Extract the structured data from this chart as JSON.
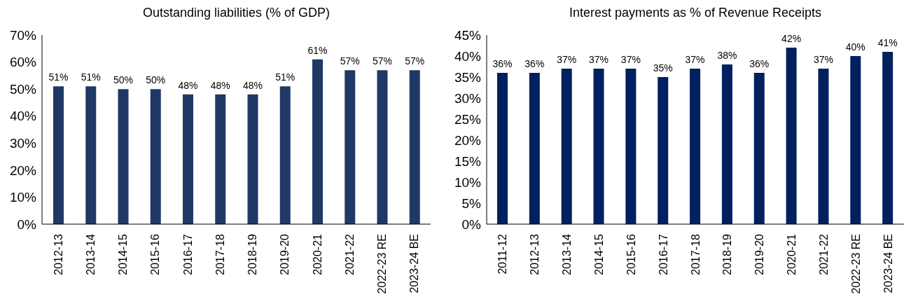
{
  "chart_data": [
    {
      "type": "bar",
      "title": "Outstanding liabilities (% of GDP)",
      "categories": [
        "2012-13",
        "2013-14",
        "2014-15",
        "2015-16",
        "2016-17",
        "2017-18",
        "2018-19",
        "2019-20",
        "2020-21",
        "2021-22",
        "2022-23 RE",
        "2023-24 BE"
      ],
      "values": [
        51,
        51,
        50,
        50,
        48,
        48,
        48,
        51,
        61,
        57,
        57,
        57
      ],
      "value_labels": [
        "51%",
        "51%",
        "50%",
        "50%",
        "48%",
        "48%",
        "48%",
        "51%",
        "61%",
        "57%",
        "57%",
        "57%"
      ],
      "color": "#203864",
      "ylim": [
        0,
        70
      ],
      "yticks": [
        {
          "value": 0,
          "label": "0%"
        },
        {
          "value": 10,
          "label": "10%"
        },
        {
          "value": 20,
          "label": "20%"
        },
        {
          "value": 30,
          "label": "30%"
        },
        {
          "value": 40,
          "label": "40%"
        },
        {
          "value": 50,
          "label": "50%"
        },
        {
          "value": 60,
          "label": "60%"
        },
        {
          "value": 70,
          "label": "70%"
        }
      ],
      "grid": false,
      "legend": false
    },
    {
      "type": "bar",
      "title": "Interest payments as % of Revenue Receipts",
      "categories": [
        "2011-12",
        "2012-13",
        "2013-14",
        "2014-15",
        "2015-16",
        "2016-17",
        "2017-18",
        "2018-19",
        "2019-20",
        "2020-21",
        "2021-22",
        "2022-23 RE",
        "2023-24 BE"
      ],
      "values": [
        36,
        36,
        37,
        37,
        37,
        35,
        37,
        38,
        36,
        42,
        37,
        40,
        41
      ],
      "value_labels": [
        "36%",
        "36%",
        "37%",
        "37%",
        "37%",
        "35%",
        "37%",
        "38%",
        "36%",
        "42%",
        "37%",
        "40%",
        "41%"
      ],
      "color": "#002060",
      "ylim": [
        0,
        45
      ],
      "yticks": [
        {
          "value": 0,
          "label": "0%"
        },
        {
          "value": 5,
          "label": "5%"
        },
        {
          "value": 10,
          "label": "10%"
        },
        {
          "value": 15,
          "label": "15%"
        },
        {
          "value": 20,
          "label": "20%"
        },
        {
          "value": 25,
          "label": "25%"
        },
        {
          "value": 30,
          "label": "30%"
        },
        {
          "value": 35,
          "label": "35%"
        },
        {
          "value": 40,
          "label": "40%"
        },
        {
          "value": 45,
          "label": "45%"
        }
      ],
      "grid": false,
      "legend": false
    }
  ]
}
